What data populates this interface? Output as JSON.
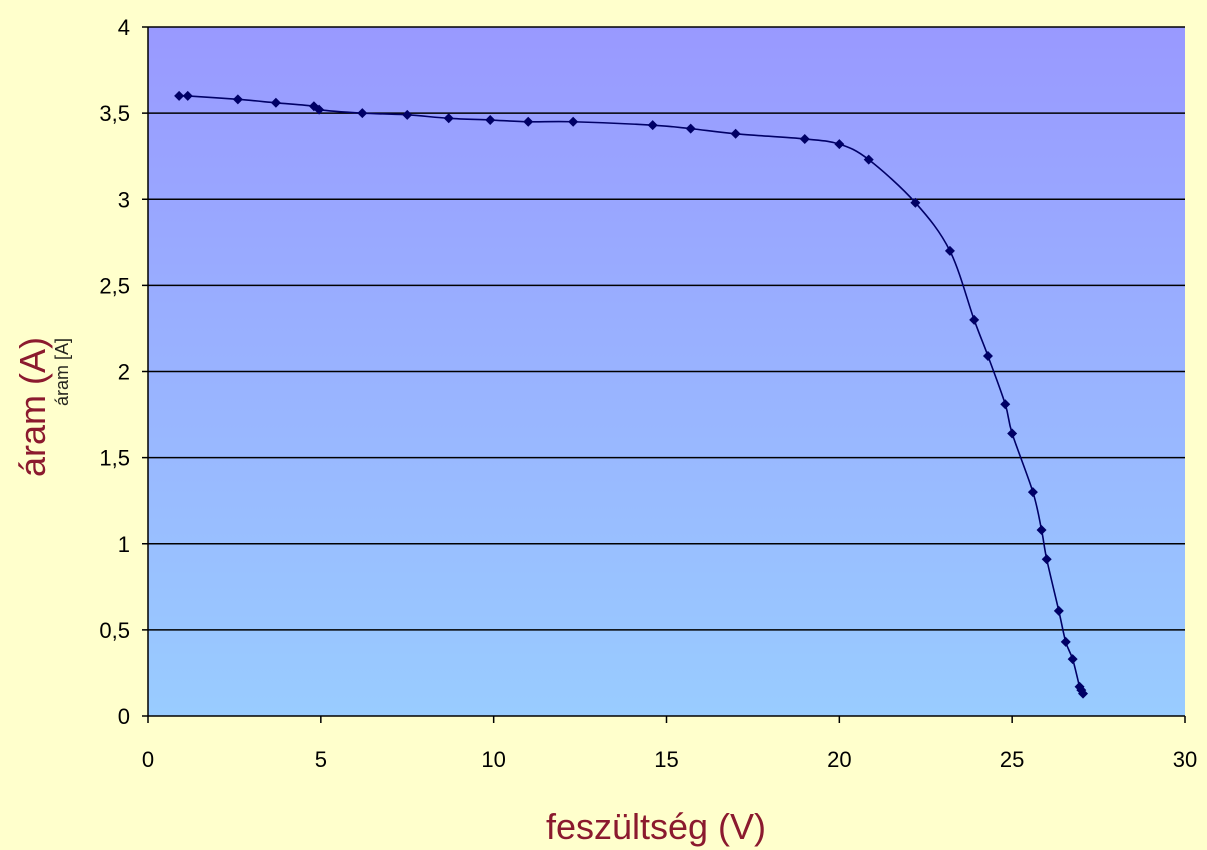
{
  "colors": {
    "page_background": "#ffffcc",
    "plot_gradient_top": "#9999ff",
    "plot_gradient_bottom": "#99ccff",
    "series_line": "#000066",
    "axis_title": "#8b1a2e",
    "gridline": "#000000"
  },
  "ghost_ylabel": "áram [A]",
  "chart_data": {
    "type": "scatter",
    "title": "",
    "xlabel": "feszültség (V)",
    "ylabel": "áram (A)",
    "xlim": [
      0,
      30
    ],
    "ylim": [
      0,
      4
    ],
    "xticks": [
      0,
      5,
      10,
      15,
      20,
      25,
      30
    ],
    "yticks": [
      0,
      0.5,
      1,
      1.5,
      2,
      2.5,
      3,
      3.5,
      4
    ],
    "xtick_labels": [
      "0",
      "5",
      "10",
      "15",
      "20",
      "25",
      "30"
    ],
    "ytick_labels": [
      "0",
      "0,5",
      "1",
      "1,5",
      "2",
      "2,5",
      "3",
      "3,5",
      "4"
    ],
    "grid": "horizontal major",
    "legend": "none",
    "marker": "diamond",
    "line": "smoothed",
    "series": [
      {
        "x": [
          0.9,
          1.15,
          2.6,
          3.7,
          4.8,
          4.95,
          6.2,
          7.5,
          8.7,
          9.9,
          11.0,
          12.3,
          14.6,
          15.7,
          17.0,
          19.0,
          20.0,
          20.85,
          22.2,
          23.2,
          23.9,
          24.3,
          24.8,
          25.0,
          25.6,
          25.85,
          26.0,
          26.35,
          26.55,
          26.75,
          26.95,
          27.0,
          27.05
        ],
        "y": [
          3.6,
          3.6,
          3.58,
          3.56,
          3.54,
          3.52,
          3.5,
          3.49,
          3.47,
          3.46,
          3.45,
          3.45,
          3.43,
          3.41,
          3.38,
          3.35,
          3.32,
          3.23,
          2.98,
          2.7,
          2.3,
          2.09,
          1.81,
          1.64,
          1.3,
          1.08,
          0.91,
          0.61,
          0.43,
          0.33,
          0.17,
          0.15,
          0.13
        ]
      }
    ]
  }
}
